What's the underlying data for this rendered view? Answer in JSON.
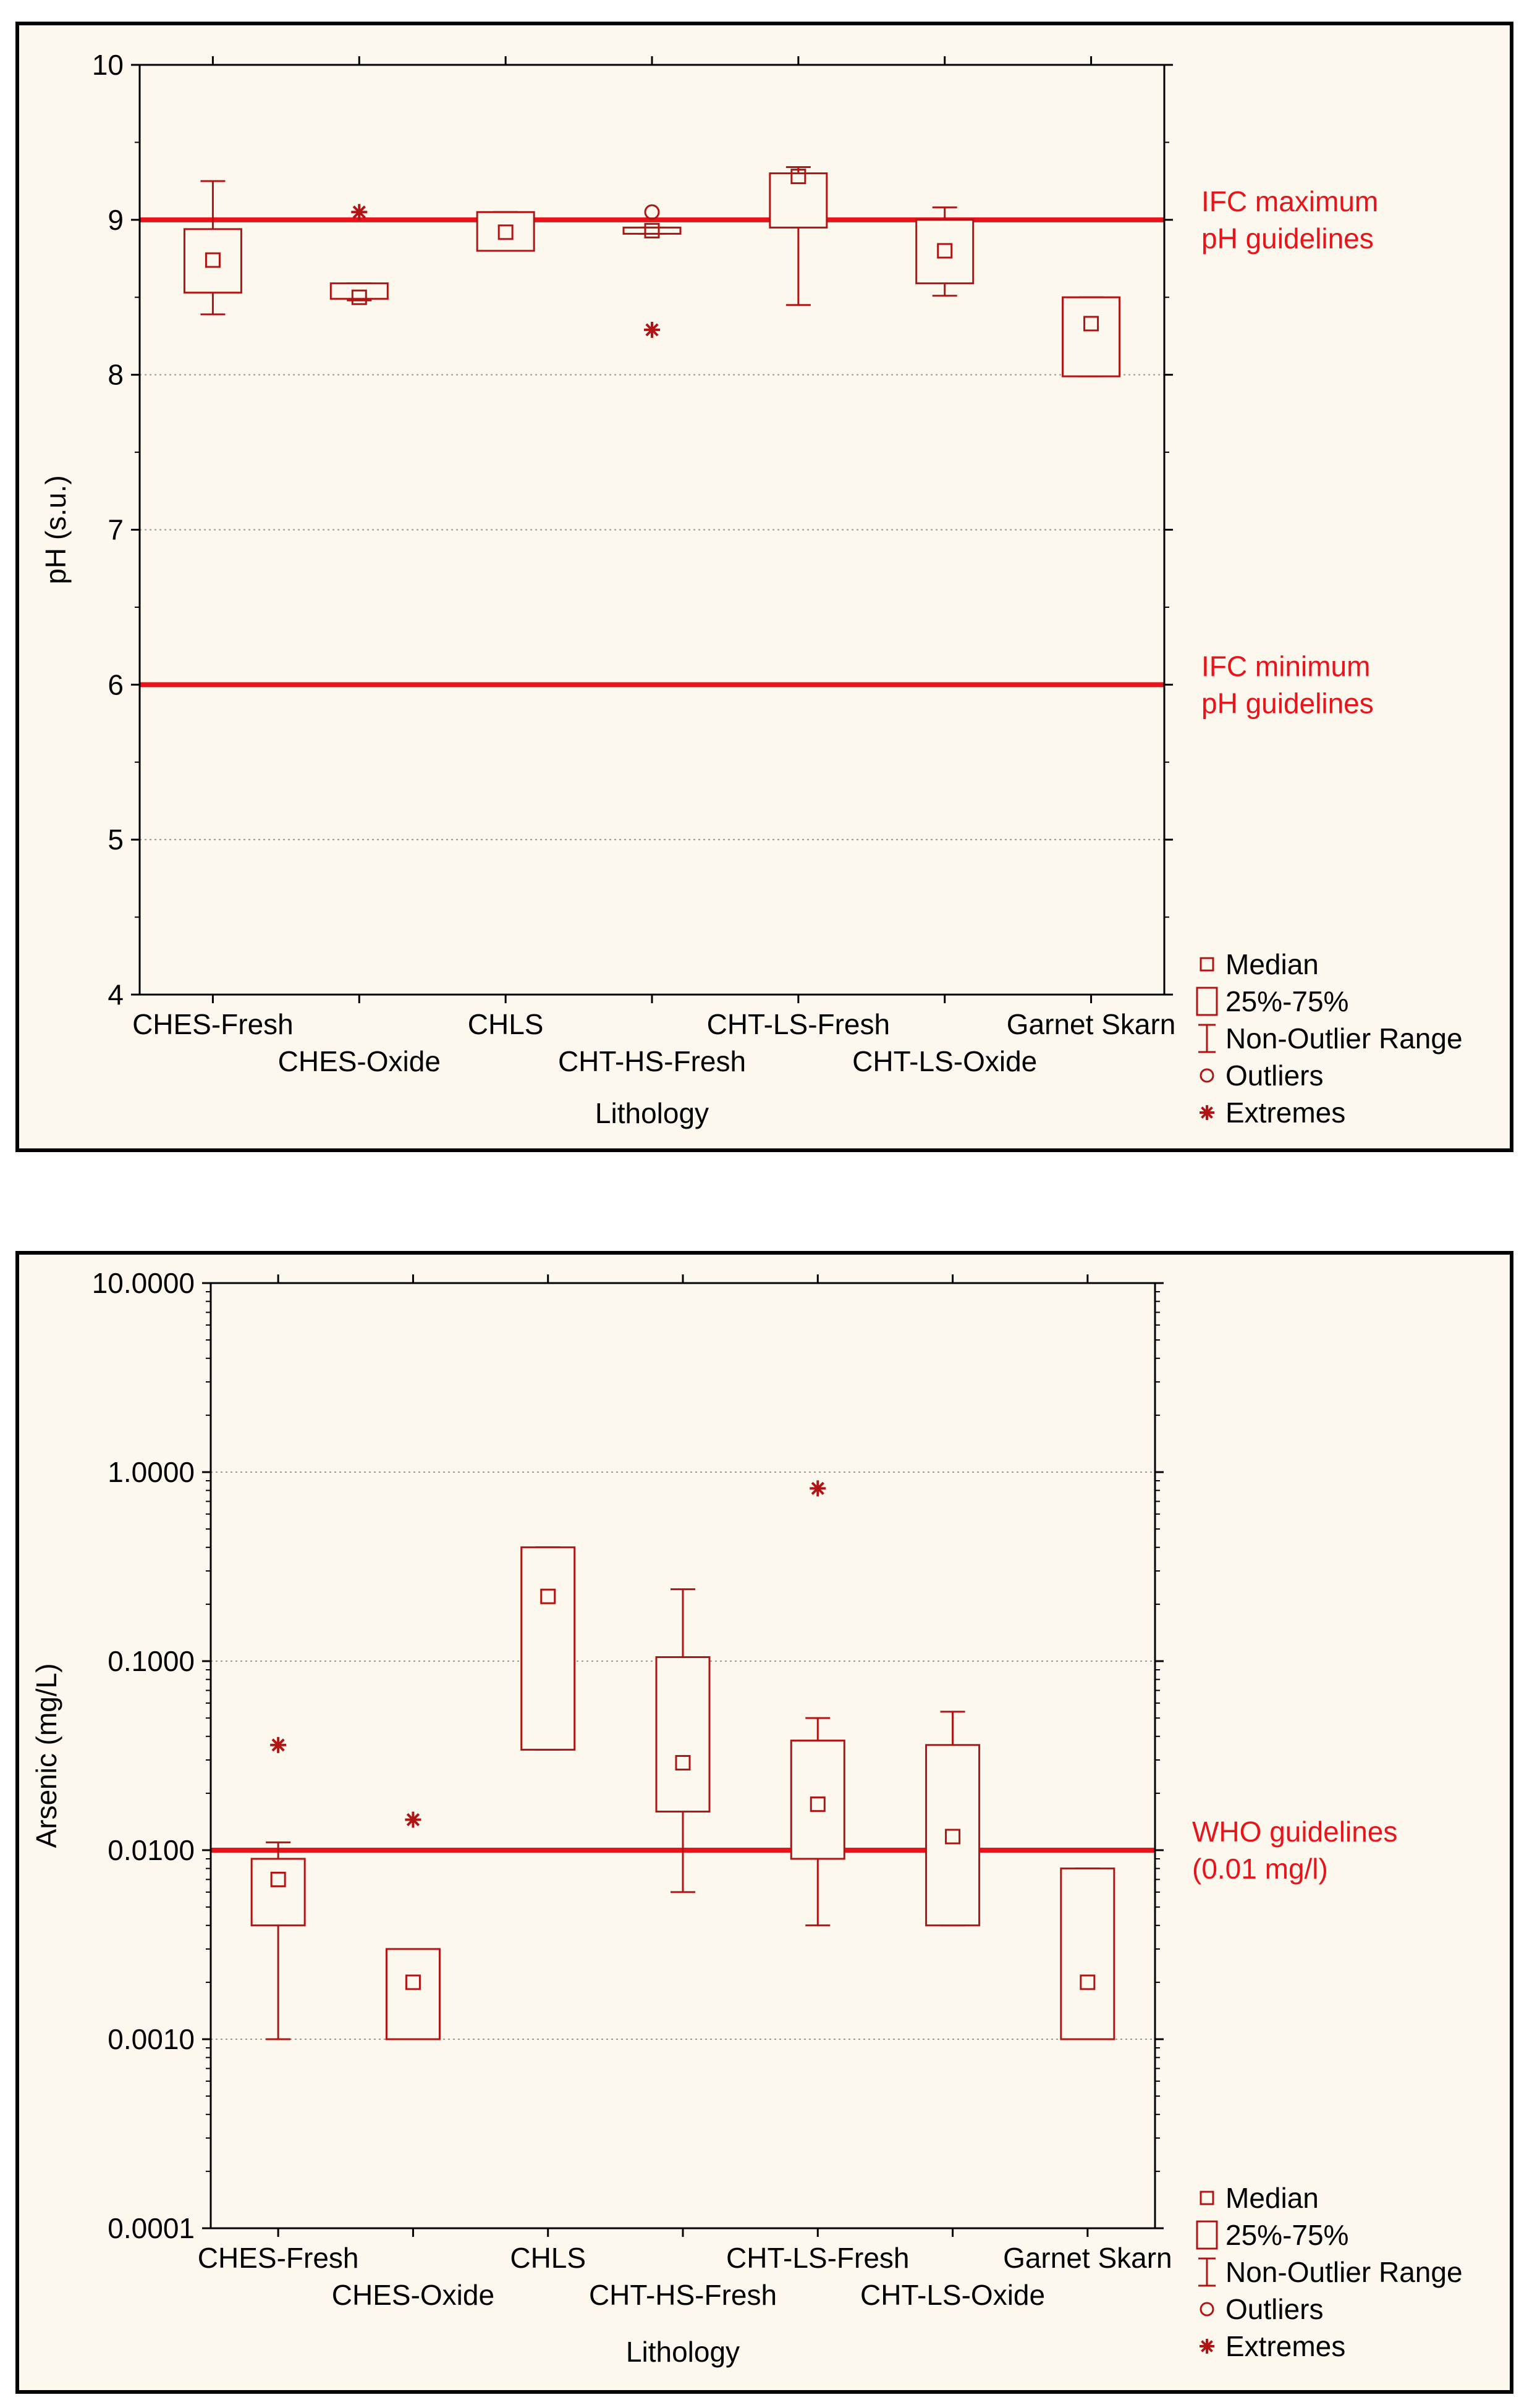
{
  "colors": {
    "box": "#b01414",
    "guide": "#e8141b",
    "axis": "#000000",
    "panel_bg": "#fcf8ee"
  },
  "legend": {
    "median": "Median",
    "iqr": "25%-75%",
    "range": "Non-Outlier Range",
    "outliers": "Outliers",
    "extremes": "Extremes"
  },
  "chart_data": [
    {
      "type": "boxplot",
      "ylabel": "pH (s.u.)",
      "xlabel": "Lithology",
      "yscale": "linear",
      "ylim": [
        4,
        10
      ],
      "yticks": [
        "4",
        "5",
        "6",
        "7",
        "8",
        "9",
        "10"
      ],
      "categories": [
        "CHES-Fresh",
        "CHES-Oxide",
        "CHLS",
        "CHT-HS-Fresh",
        "CHT-LS-Fresh",
        "CHT-LS-Oxide",
        "Garnet Skarn"
      ],
      "series": [
        {
          "name": "CHES-Fresh",
          "median": 8.74,
          "q1": 8.53,
          "q3": 8.94,
          "whisker_low": 8.39,
          "whisker_high": 9.25,
          "outliers": [],
          "extremes": []
        },
        {
          "name": "CHES-Oxide",
          "median": 8.5,
          "q1": 8.49,
          "q3": 8.59,
          "whisker_low": 8.48,
          "whisker_high": 8.59,
          "outliers": [],
          "extremes": [
            9.05
          ]
        },
        {
          "name": "CHLS",
          "median": 8.92,
          "q1": 8.8,
          "q3": 9.05,
          "whisker_low": 8.8,
          "whisker_high": 9.05,
          "outliers": [],
          "extremes": []
        },
        {
          "name": "CHT-HS-Fresh",
          "median": 8.93,
          "q1": 8.91,
          "q3": 8.95,
          "whisker_low": 8.91,
          "whisker_high": 8.95,
          "outliers": [
            9.05
          ],
          "extremes": [
            8.29
          ]
        },
        {
          "name": "CHT-LS-Fresh",
          "median": 9.28,
          "q1": 8.95,
          "q3": 9.3,
          "whisker_low": 8.45,
          "whisker_high": 9.34,
          "outliers": [],
          "extremes": []
        },
        {
          "name": "CHT-LS-Oxide",
          "median": 8.8,
          "q1": 8.59,
          "q3": 9.0,
          "whisker_low": 8.51,
          "whisker_high": 9.08,
          "outliers": [],
          "extremes": []
        },
        {
          "name": "Garnet Skarn",
          "median": 8.33,
          "q1": 7.99,
          "q3": 8.5,
          "whisker_low": 7.99,
          "whisker_high": 8.5,
          "outliers": [],
          "extremes": []
        }
      ],
      "guidelines": [
        {
          "value": 9,
          "label_line1": "IFC maximum",
          "label_line2": "pH guidelines"
        },
        {
          "value": 6,
          "label_line1": "IFC minimum",
          "label_line2": "pH guidelines"
        }
      ]
    },
    {
      "type": "boxplot",
      "ylabel": "Arsenic (mg/L)",
      "xlabel": "Lithology",
      "yscale": "log",
      "ylim": [
        0.0001,
        10
      ],
      "yticks": [
        "0.0001",
        "0.0010",
        "0.0100",
        "0.1000",
        "1.0000",
        "10.0000"
      ],
      "categories": [
        "CHES-Fresh",
        "CHES-Oxide",
        "CHLS",
        "CHT-HS-Fresh",
        "CHT-LS-Fresh",
        "CHT-LS-Oxide",
        "Garnet Skarn"
      ],
      "series": [
        {
          "name": "CHES-Fresh",
          "median": 0.007,
          "q1": 0.004,
          "q3": 0.009,
          "whisker_low": 0.001,
          "whisker_high": 0.011,
          "outliers": [],
          "extremes": [
            0.036
          ]
        },
        {
          "name": "CHES-Oxide",
          "median": 0.002,
          "q1": 0.001,
          "q3": 0.003,
          "whisker_low": 0.001,
          "whisker_high": 0.003,
          "outliers": [],
          "extremes": [
            0.0145
          ]
        },
        {
          "name": "CHLS",
          "median": 0.22,
          "q1": 0.034,
          "q3": 0.4,
          "whisker_low": 0.034,
          "whisker_high": 0.4,
          "outliers": [],
          "extremes": []
        },
        {
          "name": "CHT-HS-Fresh",
          "median": 0.029,
          "q1": 0.016,
          "q3": 0.105,
          "whisker_low": 0.006,
          "whisker_high": 0.24,
          "outliers": [],
          "extremes": []
        },
        {
          "name": "CHT-LS-Fresh",
          "median": 0.0175,
          "q1": 0.009,
          "q3": 0.038,
          "whisker_low": 0.004,
          "whisker_high": 0.05,
          "outliers": [],
          "extremes": [
            0.82
          ]
        },
        {
          "name": "CHT-LS-Oxide",
          "median": 0.0118,
          "q1": 0.004,
          "q3": 0.036,
          "whisker_low": 0.004,
          "whisker_high": 0.054,
          "outliers": [],
          "extremes": []
        },
        {
          "name": "Garnet Skarn",
          "median": 0.002,
          "q1": 0.001,
          "q3": 0.008,
          "whisker_low": 0.001,
          "whisker_high": 0.008,
          "outliers": [],
          "extremes": []
        }
      ],
      "guidelines": [
        {
          "value": 0.01,
          "label_line1": "WHO guidelines",
          "label_line2": "(0.01 mg/l)"
        }
      ]
    }
  ]
}
